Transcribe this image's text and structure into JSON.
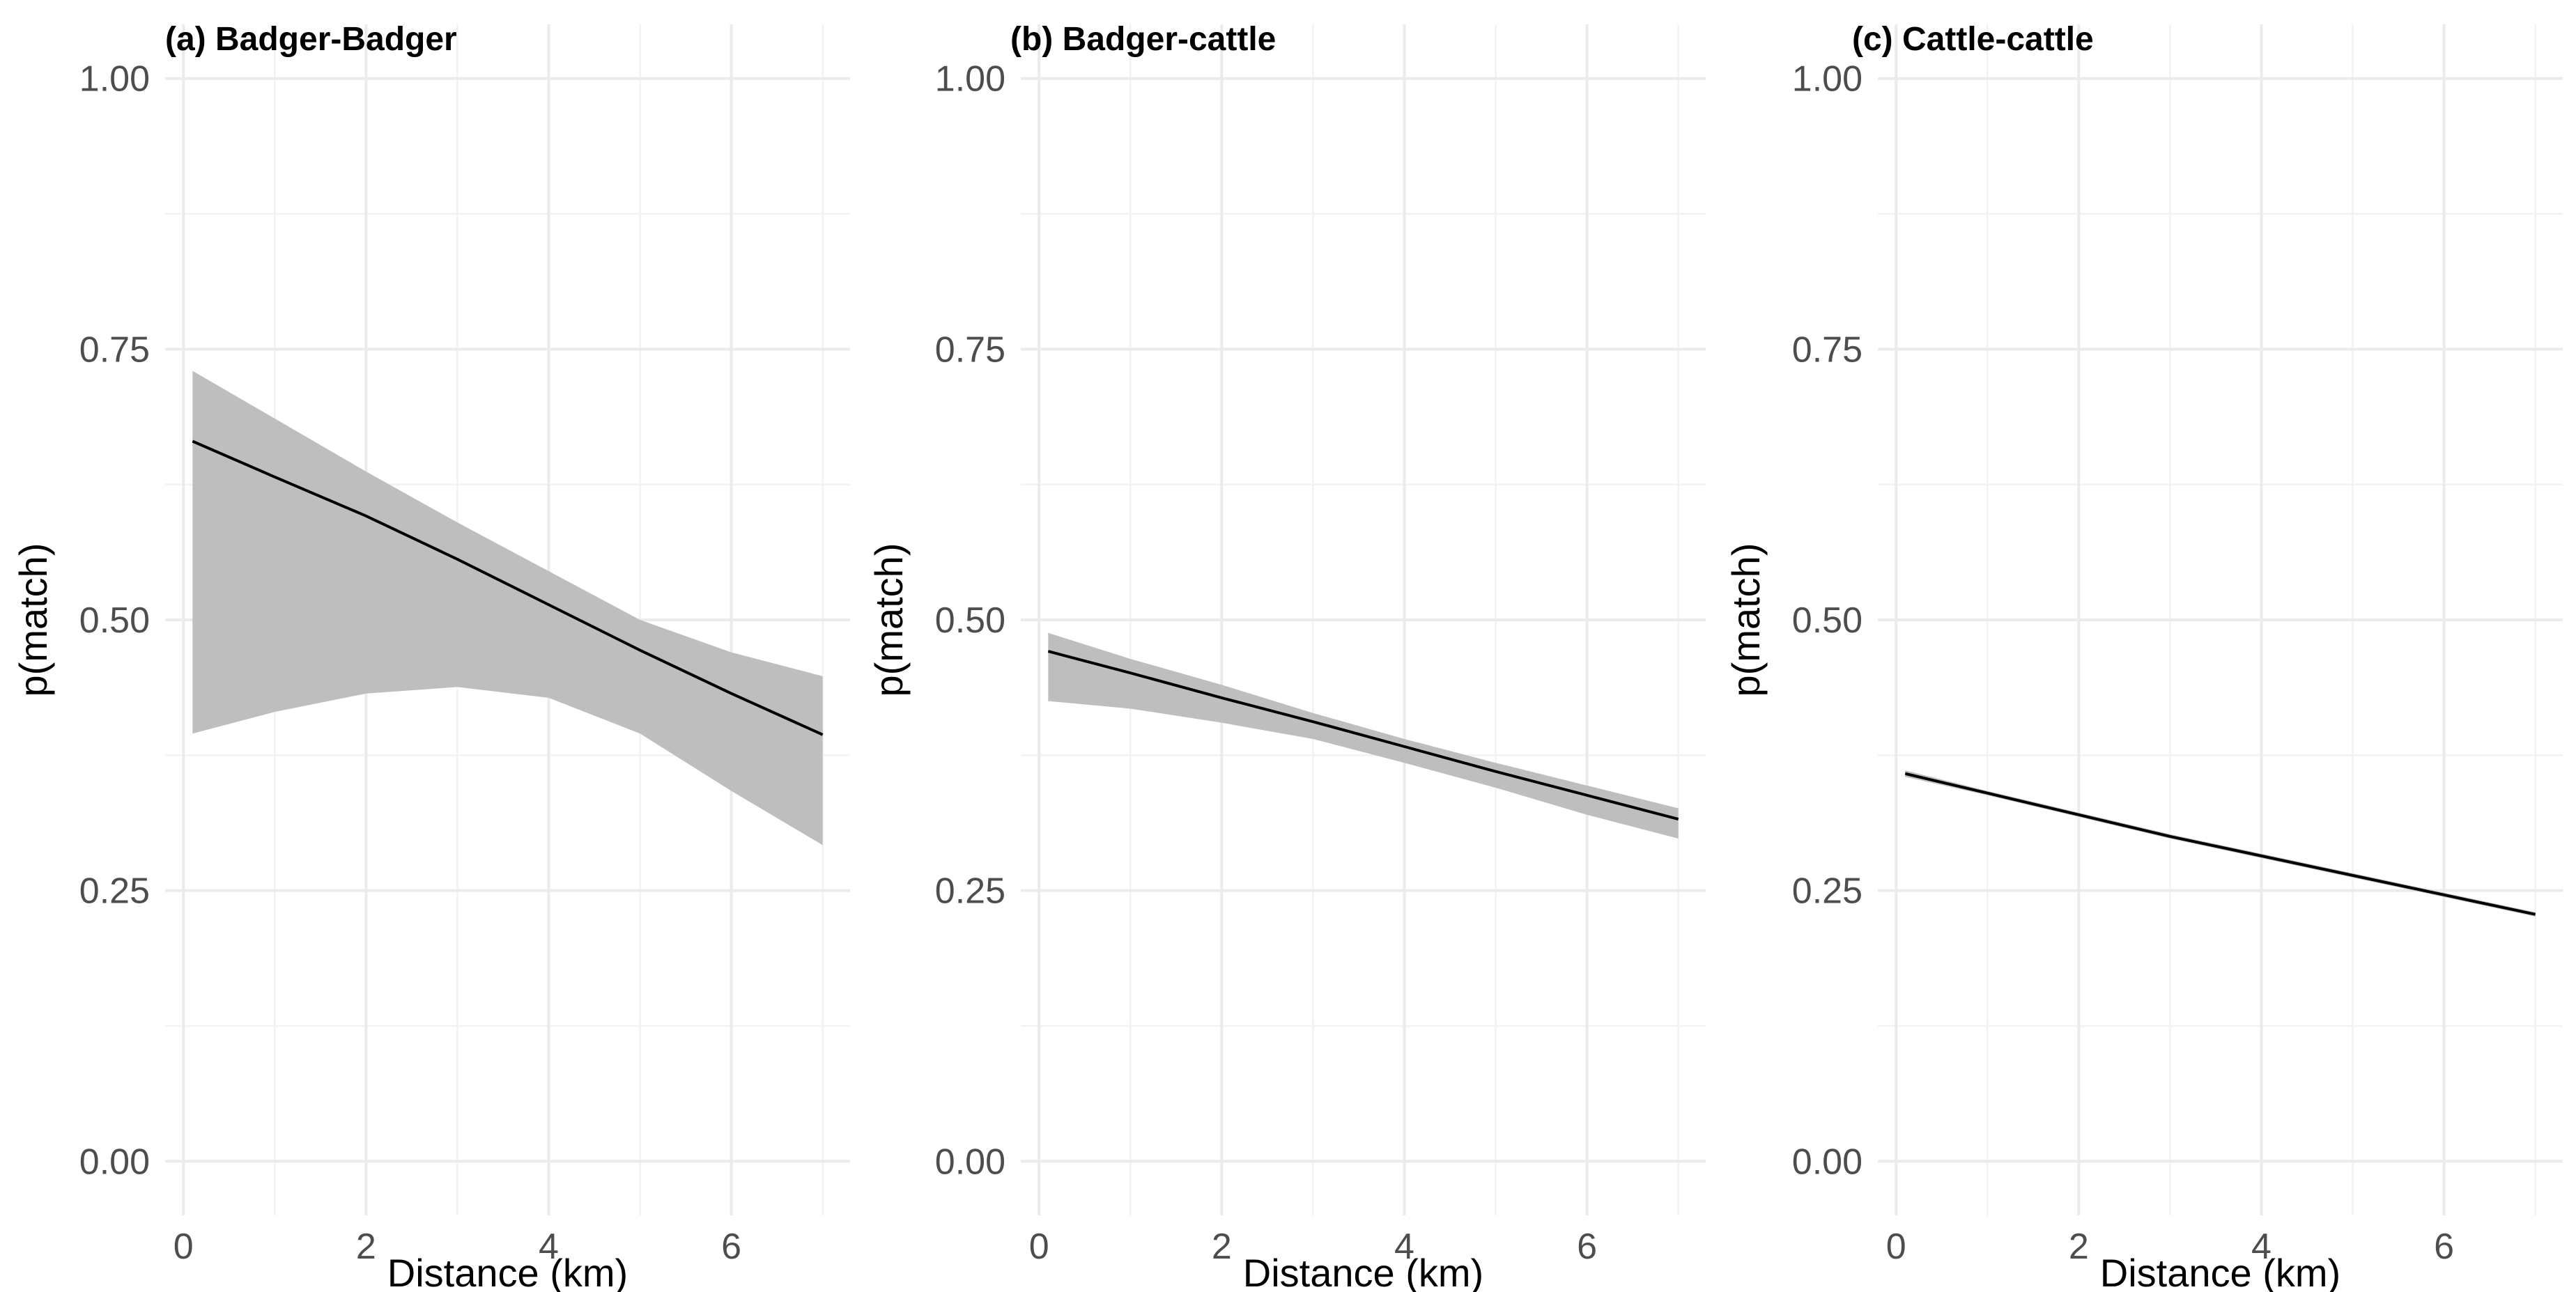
{
  "colors": {
    "background": "#ffffff",
    "ribbon": "#bebebe",
    "line": "#000000",
    "grid": "#ebebeb",
    "tick_text": "#4d4d4d"
  },
  "chart_data": [
    {
      "type": "line",
      "title": "(a) Badger-Badger",
      "xlabel": "Distance (km)",
      "ylabel": "p(match)",
      "xlim": [
        -0.2,
        7.3
      ],
      "ylim": [
        -0.05,
        1.05
      ],
      "x_ticks": [
        0,
        2,
        4,
        6
      ],
      "x_tick_labels": [
        "0",
        "2",
        "4",
        "6"
      ],
      "y_ticks": [
        0,
        0.25,
        0.5,
        0.75,
        1
      ],
      "y_tick_labels": [
        "0.00",
        "0.25",
        "0.50",
        "0.75",
        "1.00"
      ],
      "series": [
        {
          "name": "fit",
          "x": [
            0.1,
            1,
            2,
            3,
            4,
            5,
            6,
            7
          ],
          "y": [
            0.665,
            0.632,
            0.596,
            0.556,
            0.514,
            0.472,
            0.432,
            0.394
          ],
          "lower": [
            0.395,
            0.415,
            0.432,
            0.438,
            0.428,
            0.395,
            0.342,
            0.292
          ],
          "upper": [
            0.73,
            0.686,
            0.637,
            0.59,
            0.545,
            0.5,
            0.47,
            0.448
          ]
        }
      ],
      "grid": true
    },
    {
      "type": "line",
      "title": "(b) Badger-cattle",
      "xlabel": "Distance (km)",
      "ylabel": "p(match)",
      "xlim": [
        -0.2,
        7.3
      ],
      "ylim": [
        -0.05,
        1.05
      ],
      "x_ticks": [
        0,
        2,
        4,
        6
      ],
      "x_tick_labels": [
        "0",
        "2",
        "4",
        "6"
      ],
      "y_ticks": [
        0,
        0.25,
        0.5,
        0.75,
        1
      ],
      "y_tick_labels": [
        "0.00",
        "0.25",
        "0.50",
        "0.75",
        "1.00"
      ],
      "series": [
        {
          "name": "fit",
          "x": [
            0.1,
            1,
            2,
            3,
            4,
            5,
            6,
            7
          ],
          "y": [
            0.471,
            0.451,
            0.428,
            0.406,
            0.383,
            0.36,
            0.338,
            0.316
          ],
          "lower": [
            0.425,
            0.418,
            0.405,
            0.39,
            0.368,
            0.345,
            0.32,
            0.298
          ],
          "upper": [
            0.488,
            0.464,
            0.44,
            0.414,
            0.39,
            0.368,
            0.347,
            0.326
          ]
        }
      ],
      "grid": true
    },
    {
      "type": "line",
      "title": "(c) Cattle-cattle",
      "xlabel": "Distance (km)",
      "ylabel": "p(match)",
      "xlim": [
        -0.2,
        7.3
      ],
      "ylim": [
        -0.05,
        1.05
      ],
      "x_ticks": [
        0,
        2,
        4,
        6
      ],
      "x_tick_labels": [
        "0",
        "2",
        "4",
        "6"
      ],
      "y_ticks": [
        0,
        0.25,
        0.5,
        0.75,
        1
      ],
      "y_tick_labels": [
        "0.00",
        "0.25",
        "0.50",
        "0.75",
        "1.00"
      ],
      "series": [
        {
          "name": "fit",
          "x": [
            0.1,
            1,
            2,
            3,
            4,
            5,
            6,
            7
          ],
          "y": [
            0.358,
            0.34,
            0.32,
            0.3,
            0.282,
            0.264,
            0.246,
            0.228
          ],
          "lower": [
            0.355,
            0.338,
            0.318,
            0.298,
            0.28,
            0.262,
            0.244,
            0.226
          ],
          "upper": [
            0.361,
            0.342,
            0.322,
            0.302,
            0.284,
            0.266,
            0.248,
            0.23
          ]
        }
      ],
      "grid": true
    }
  ]
}
